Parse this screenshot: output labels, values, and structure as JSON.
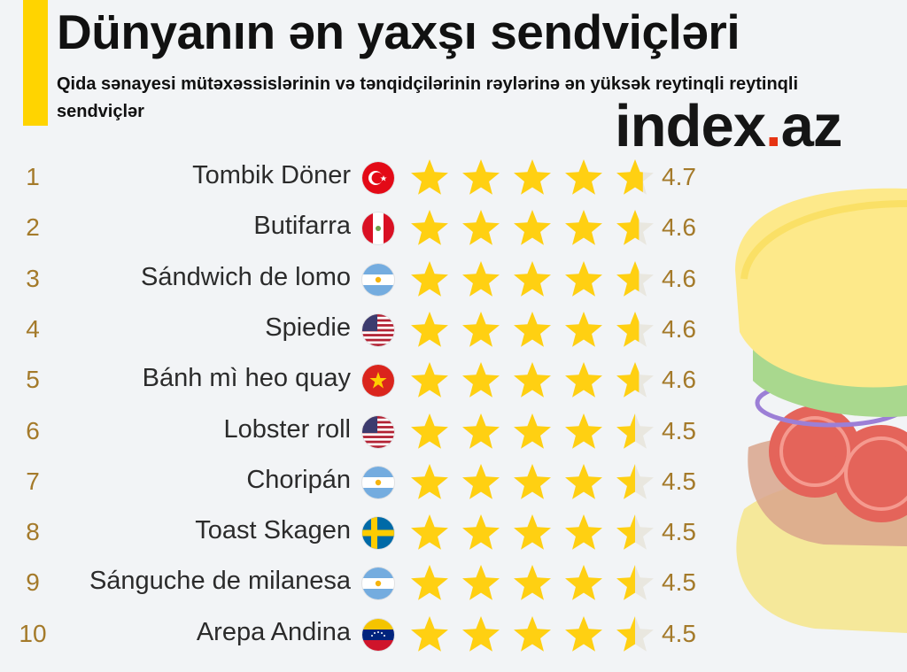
{
  "header": {
    "title": "Dünyanın ən yaxşı sendviçləri",
    "subtitle": "Qida sənayesi mütəxəssislərinin və tənqidçilərinin rəylərinə ən yüksək reytinqli reytinqli sendviçlər",
    "logo_main": "index",
    "logo_dot": ".",
    "logo_tld": "az"
  },
  "colors": {
    "accent": "#ffd400",
    "star": "#ffd012",
    "rank_text": "#a47a2a",
    "logo_dot": "#e63312"
  },
  "chart_data": {
    "type": "table",
    "columns": [
      "rank",
      "sandwich",
      "flag",
      "stars",
      "score"
    ],
    "max_stars": 5,
    "rows": [
      {
        "rank": "1",
        "name": "Tombik Döner",
        "flag": "turkey-flag",
        "score": "4.7",
        "rating": 4.7
      },
      {
        "rank": "2",
        "name": "Butifarra",
        "flag": "peru-flag",
        "score": "4.6",
        "rating": 4.6
      },
      {
        "rank": "3",
        "name": "Sándwich de lomo",
        "flag": "argentina-flag",
        "score": "4.6",
        "rating": 4.6
      },
      {
        "rank": "4",
        "name": "Spiedie",
        "flag": "usa-flag",
        "score": "4.6",
        "rating": 4.6
      },
      {
        "rank": "5",
        "name": "Bánh mì heo quay",
        "flag": "vietnam-flag",
        "score": "4.6",
        "rating": 4.6
      },
      {
        "rank": "6",
        "name": "Lobster roll",
        "flag": "usa-flag",
        "score": "4.5",
        "rating": 4.5
      },
      {
        "rank": "7",
        "name": "Choripán",
        "flag": "argentina-flag",
        "score": "4.5",
        "rating": 4.5
      },
      {
        "rank": "8",
        "name": "Toast Skagen",
        "flag": "sweden-flag",
        "score": "4.5",
        "rating": 4.5
      },
      {
        "rank": "9",
        "name": "Sánguche de milanesa",
        "flag": "argentina-flag",
        "score": "4.5",
        "rating": 4.5
      },
      {
        "rank": "10",
        "name": "Arepa Andina",
        "flag": "venezuela-flag",
        "score": "4.5",
        "rating": 4.5
      }
    ]
  }
}
